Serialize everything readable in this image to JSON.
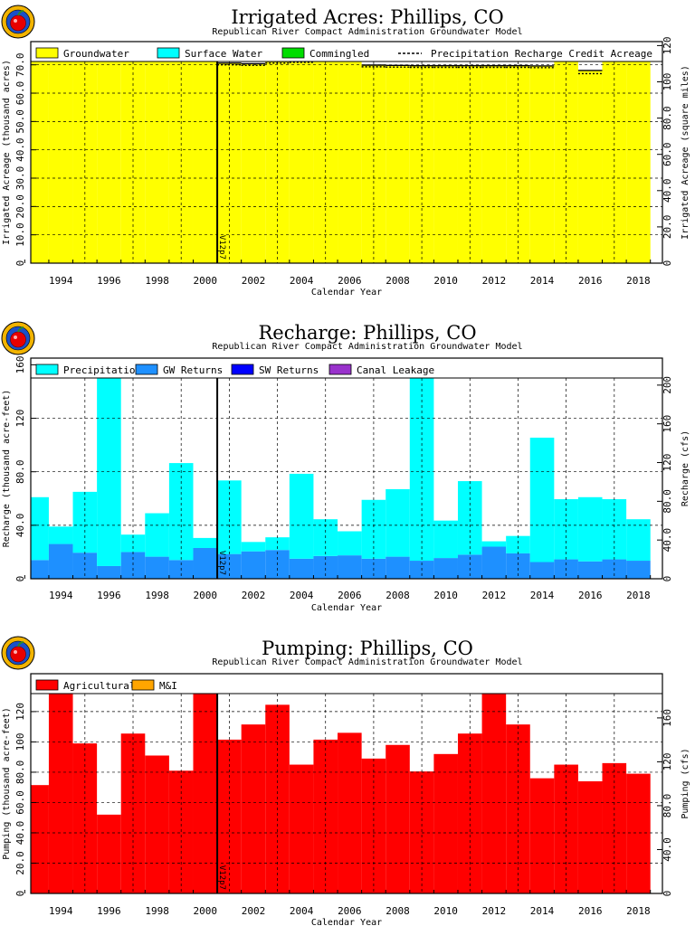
{
  "colors": {
    "groundwater": "#ffff00",
    "surface_water": "#00ffff",
    "commingled": "#00dd00",
    "precipitation": "#00ffff",
    "gw_returns": "#1e90ff",
    "sw_returns": "#0000ff",
    "canal_leakage": "#9932cc",
    "agricultural": "#ff0000",
    "mi": "#ffa500"
  },
  "chart_data": [
    {
      "type": "area",
      "title": "Irrigated Acres: Phillips, CO",
      "subtitle": "Republican River Compact Administration Groundwater Model",
      "xlabel": "Calendar Year",
      "ylabel": "Irrigated Acreage (thousand acres)",
      "ylabel_right": "Irrigated Acreage (square miles)",
      "ylim": [
        0,
        78.2
      ],
      "ylim_right": [
        0,
        122.2
      ],
      "yticks": [
        0,
        10,
        20,
        30,
        40,
        50,
        60,
        70
      ],
      "yticks_labels": [
        "0",
        "10.0",
        "20.0",
        "30.0",
        "40.0",
        "50.0",
        "60.0",
        "70.0"
      ],
      "yticks_right": [
        0,
        20,
        40,
        60,
        80,
        100,
        120
      ],
      "yticks_right_labels": [
        "0",
        "20.0",
        "40.0",
        "60.0",
        "80.0",
        "100",
        "120"
      ],
      "xlim": [
        1992.75,
        2019.0
      ],
      "xticks": [
        1994,
        1996,
        1998,
        2000,
        2002,
        2004,
        2006,
        2008,
        2010,
        2012,
        2014,
        2016,
        2018
      ],
      "version_label": "V12p7",
      "version_x": 2000.5,
      "grid": true,
      "legend": [
        "Groundwater",
        "Surface Water",
        "Commingled",
        "Precipitation Recharge Credit Acreage"
      ],
      "years": [
        1993,
        1994,
        1995,
        1996,
        1997,
        1998,
        1999,
        2000,
        2001,
        2002,
        2003,
        2004,
        2005,
        2006,
        2007,
        2008,
        2009,
        2010,
        2011,
        2012,
        2013,
        2014,
        2015,
        2016,
        2017,
        2018
      ],
      "groundwater": [
        78,
        78,
        78,
        78,
        78,
        78,
        78,
        78,
        70.6,
        70.4,
        71.2,
        71.5,
        73.7,
        73.3,
        69.9,
        69.8,
        69.7,
        69.7,
        69.7,
        69.7,
        69.7,
        69.6,
        77.1,
        68,
        77.3,
        76.4
      ],
      "surface_water": [
        0,
        0,
        0,
        0,
        0,
        0,
        0,
        0,
        0,
        0,
        0,
        0,
        0,
        0,
        0,
        0,
        0,
        0,
        0,
        0,
        0,
        0,
        0,
        0,
        0,
        0
      ],
      "commingled": [
        0,
        0,
        0,
        0,
        0,
        0,
        0,
        0,
        0,
        0,
        0,
        0,
        0,
        0,
        0,
        0,
        0,
        0,
        0,
        0,
        0,
        0,
        0,
        0,
        0,
        0
      ],
      "precip_recharge_credit": [
        77.5,
        77.5,
        77.5,
        77.5,
        77.5,
        77.5,
        77.5,
        77.5,
        70,
        69.8,
        70.6,
        70.9,
        73.1,
        72.7,
        69.3,
        69.2,
        69.1,
        69.1,
        69.1,
        69.1,
        69.1,
        69,
        76.2,
        66.9,
        76.4,
        75.5
      ]
    },
    {
      "type": "bar",
      "title": "Recharge: Phillips, CO",
      "subtitle": "Republican River Compact Administration Groundwater Model",
      "xlabel": "Calendar Year",
      "ylabel": "Recharge (thousand acre-feet)",
      "ylabel_right": "Recharge (cfs)",
      "ylim": [
        0,
        165
      ],
      "ylim_right": [
        0,
        227.9
      ],
      "yticks": [
        0,
        40,
        80,
        120,
        160
      ],
      "yticks_labels": [
        "0",
        "40.0",
        "80.0",
        "120",
        "160"
      ],
      "yticks_right": [
        0,
        40,
        80,
        120,
        160,
        200
      ],
      "yticks_right_labels": [
        "0",
        "40.0",
        "80.0",
        "120",
        "160",
        "200"
      ],
      "xlim": [
        1992.75,
        2019.0
      ],
      "xticks": [
        1994,
        1996,
        1998,
        2000,
        2002,
        2004,
        2006,
        2008,
        2010,
        2012,
        2014,
        2016,
        2018
      ],
      "version_label": "V12p7",
      "version_x": 2000.5,
      "grid": true,
      "legend": [
        "Precipitation",
        "GW Returns",
        "SW Returns",
        "Canal Leakage"
      ],
      "years": [
        1993,
        1994,
        1995,
        1996,
        1997,
        1998,
        1999,
        2000,
        2001,
        2002,
        2003,
        2004,
        2005,
        2006,
        2007,
        2008,
        2009,
        2010,
        2011,
        2012,
        2013,
        2014,
        2015,
        2016,
        2017,
        2018
      ],
      "gw_returns": [
        14,
        26,
        19.5,
        9.5,
        20,
        16.5,
        14,
        23,
        18.5,
        20.5,
        21.5,
        15,
        17,
        17.5,
        15,
        16.5,
        13.5,
        15.5,
        18,
        24,
        19,
        12.5,
        14.5,
        13,
        14.5,
        13.5
      ],
      "precipitation": [
        47,
        13,
        45.5,
        148.5,
        13,
        32.5,
        72.5,
        7.5,
        55,
        7,
        9.5,
        63.5,
        27.5,
        18,
        44,
        50.5,
        149.5,
        28,
        55,
        4,
        13,
        93,
        45,
        48,
        45,
        31
      ],
      "sw_returns": [
        0,
        0,
        0,
        0,
        0,
        0,
        0,
        0,
        0,
        0,
        0,
        0,
        0,
        0,
        0,
        0,
        0,
        0,
        0,
        0,
        0,
        0,
        0,
        0,
        0,
        0
      ],
      "canal_leakage": [
        0,
        0,
        0,
        0,
        0,
        0,
        0,
        0,
        0,
        0,
        0,
        0,
        0,
        0,
        0,
        0,
        0,
        0,
        0,
        0,
        0,
        0,
        0,
        0,
        0,
        0
      ]
    },
    {
      "type": "bar",
      "title": "Pumping: Phillips, CO",
      "subtitle": "Republican River Compact Administration Groundwater Model",
      "xlabel": "Calendar Year",
      "ylabel": "Pumping (thousand acre-feet)",
      "ylabel_right": "Pumping (cfs)",
      "ylim": [
        0,
        145
      ],
      "ylim_right": [
        0,
        200.3
      ],
      "yticks": [
        0,
        20,
        40,
        60,
        80,
        100,
        120
      ],
      "yticks_labels": [
        "0",
        "20.0",
        "40.0",
        "60.0",
        "80.0",
        "100",
        "120"
      ],
      "yticks_right": [
        0,
        40,
        80,
        120,
        160
      ],
      "yticks_right_labels": [
        "0",
        "40.0",
        "80.0",
        "120",
        "160"
      ],
      "xlim": [
        1992.75,
        2019.0
      ],
      "xticks": [
        1994,
        1996,
        1998,
        2000,
        2002,
        2004,
        2006,
        2008,
        2010,
        2012,
        2014,
        2016,
        2018
      ],
      "version_label": "V12p7",
      "version_x": 2000.5,
      "grid": true,
      "legend": [
        "Agricultural",
        "M&I"
      ],
      "years": [
        1993,
        1994,
        1995,
        1996,
        1997,
        1998,
        1999,
        2000,
        2001,
        2002,
        2003,
        2004,
        2005,
        2006,
        2007,
        2008,
        2009,
        2010,
        2011,
        2012,
        2013,
        2014,
        2015,
        2016,
        2017,
        2018
      ],
      "agricultural": [
        71.5,
        133.5,
        99,
        52,
        105.5,
        91,
        81,
        133,
        101.5,
        111.5,
        124.5,
        85,
        101.5,
        106,
        89,
        98,
        80.5,
        92,
        105.5,
        137,
        111.5,
        76,
        85,
        74,
        86,
        79
      ],
      "mi": [
        0,
        0,
        0,
        0,
        0,
        0,
        0,
        0,
        0,
        0,
        0,
        0,
        0,
        0,
        0,
        0,
        0,
        0,
        0,
        0,
        0,
        0,
        0,
        0,
        0,
        0
      ]
    }
  ]
}
